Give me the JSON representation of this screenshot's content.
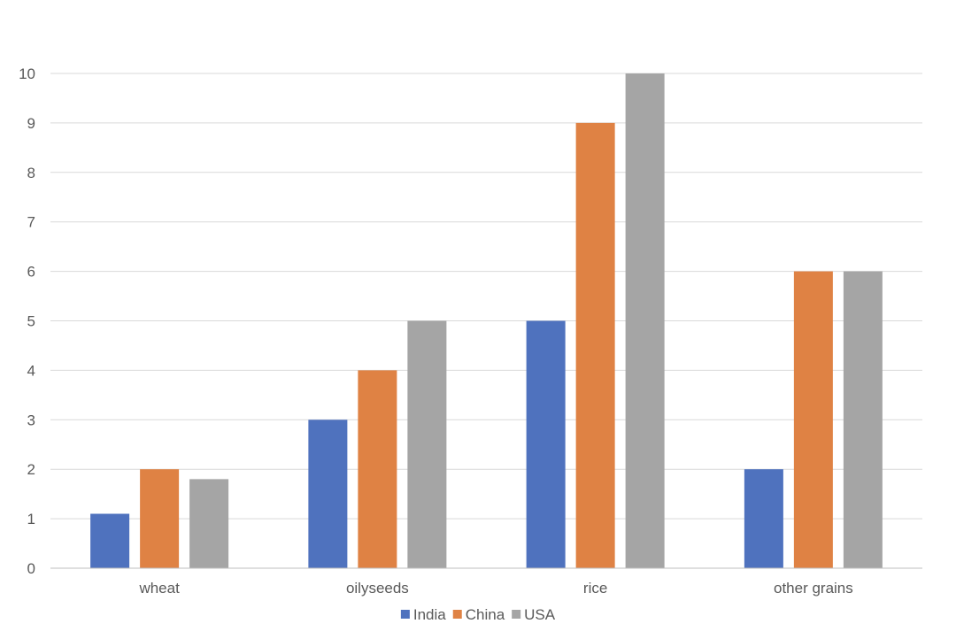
{
  "chart_data": {
    "type": "bar",
    "categories": [
      "wheat",
      "oilyseeds",
      "rice",
      "other grains"
    ],
    "series": [
      {
        "name": "India",
        "color": "#4f72be",
        "values": [
          1.1,
          3,
          5,
          2
        ]
      },
      {
        "name": "China",
        "color": "#df8244",
        "values": [
          2,
          4,
          9,
          6
        ]
      },
      {
        "name": "USA",
        "color": "#a5a5a5",
        "values": [
          1.8,
          5,
          10,
          6
        ]
      }
    ],
    "title": "",
    "xlabel": "",
    "ylabel": "",
    "ylim": [
      0,
      10
    ],
    "yticks": [
      0,
      1,
      2,
      3,
      4,
      5,
      6,
      7,
      8,
      9,
      10
    ],
    "grid": true,
    "legend": "bottom"
  }
}
